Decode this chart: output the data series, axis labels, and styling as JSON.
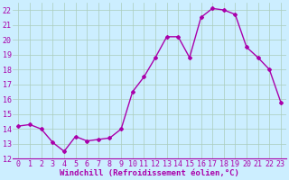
{
  "hours": [
    0,
    1,
    2,
    3,
    4,
    5,
    6,
    7,
    8,
    9,
    10,
    11,
    12,
    13,
    14,
    15,
    16,
    17,
    18,
    19,
    20,
    21,
    22,
    23
  ],
  "values": [
    14.2,
    14.3,
    14.0,
    13.1,
    12.5,
    13.5,
    13.2,
    13.3,
    13.4,
    14.0,
    16.5,
    17.5,
    18.8,
    20.2,
    20.2,
    18.8,
    21.5,
    22.1,
    22.0,
    21.7,
    19.5,
    18.8,
    18.0,
    15.8
  ],
  "line_color": "#aa00aa",
  "marker": "D",
  "marker_size": 2.0,
  "bg_color": "#cceeff",
  "grid_color": "#aaccbb",
  "ylim": [
    12,
    22.5
  ],
  "yticks": [
    12,
    13,
    14,
    15,
    16,
    17,
    18,
    19,
    20,
    21,
    22
  ],
  "xtick_labels": [
    "0",
    "1",
    "2",
    "3",
    "4",
    "5",
    "6",
    "7",
    "8",
    "9",
    "10",
    "11",
    "12",
    "13",
    "14",
    "15",
    "16",
    "17",
    "18",
    "19",
    "20",
    "21",
    "22",
    "23"
  ],
  "xlabel": "Windchill (Refroidissement éolien,°C)",
  "xlabel_fontsize": 6.5,
  "tick_fontsize": 6.0,
  "tick_color": "#aa00aa",
  "label_color": "#aa00aa",
  "line_width": 1.0
}
